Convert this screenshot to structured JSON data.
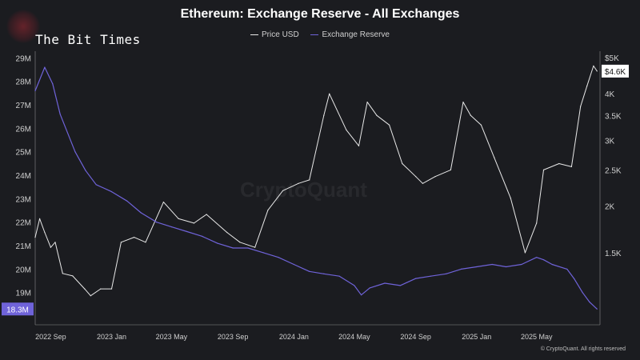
{
  "chart_data": {
    "type": "line",
    "title": "Ethereum: Exchange Reserve - All Exchanges",
    "series": [
      {
        "name": "Price USD",
        "axis": "right",
        "color": "#e8e8e8",
        "x": [
          "2022-08-01",
          "2022-08-10",
          "2022-08-20",
          "2022-09-01",
          "2022-09-10",
          "2022-09-25",
          "2022-10-15",
          "2022-11-08",
          "2022-11-20",
          "2022-12-10",
          "2023-01-01",
          "2023-01-20",
          "2023-02-15",
          "2023-03-10",
          "2023-04-15",
          "2023-05-15",
          "2023-06-15",
          "2023-07-10",
          "2023-08-20",
          "2023-09-15",
          "2023-10-15",
          "2023-11-10",
          "2023-12-10",
          "2024-01-10",
          "2024-02-01",
          "2024-03-01",
          "2024-03-12",
          "2024-04-15",
          "2024-05-10",
          "2024-05-27",
          "2024-06-15",
          "2024-07-10",
          "2024-08-05",
          "2024-09-01",
          "2024-09-15",
          "2024-10-10",
          "2024-11-10",
          "2024-12-05",
          "2024-12-20",
          "2025-01-10",
          "2025-02-05",
          "2025-03-10",
          "2025-04-08",
          "2025-05-01",
          "2025-05-15",
          "2025-06-15",
          "2025-07-10",
          "2025-07-28",
          "2025-08-10",
          "2025-08-23",
          "2025-08-30"
        ],
        "values": [
          1650,
          1850,
          1700,
          1550,
          1600,
          1320,
          1300,
          1200,
          1150,
          1200,
          1200,
          1600,
          1650,
          1600,
          2050,
          1850,
          1800,
          1900,
          1700,
          1600,
          1550,
          1950,
          2200,
          2300,
          2350,
          3500,
          4000,
          3200,
          2900,
          3800,
          3500,
          3300,
          2600,
          2400,
          2300,
          2400,
          2500,
          3800,
          3500,
          3300,
          2700,
          2100,
          1500,
          1800,
          2500,
          2600,
          2550,
          3700,
          4200,
          4750,
          4600
        ]
      },
      {
        "name": "Exchange Reserve",
        "axis": "left",
        "color": "#6f63d9",
        "x": [
          "2022-08-01",
          "2022-08-20",
          "2022-09-05",
          "2022-09-20",
          "2022-10-20",
          "2022-11-10",
          "2022-12-01",
          "2023-01-01",
          "2023-02-01",
          "2023-03-01",
          "2023-04-01",
          "2023-05-01",
          "2023-06-01",
          "2023-07-01",
          "2023-08-01",
          "2023-09-01",
          "2023-10-01",
          "2023-11-01",
          "2023-12-01",
          "2024-01-01",
          "2024-02-01",
          "2024-03-01",
          "2024-04-01",
          "2024-05-01",
          "2024-05-15",
          "2024-06-01",
          "2024-07-01",
          "2024-08-01",
          "2024-09-01",
          "2024-10-01",
          "2024-11-01",
          "2024-12-01",
          "2025-01-01",
          "2025-02-01",
          "2025-03-01",
          "2025-04-01",
          "2025-05-01",
          "2025-05-15",
          "2025-06-01",
          "2025-07-01",
          "2025-07-15",
          "2025-08-01",
          "2025-08-15",
          "2025-08-30"
        ],
        "values": [
          27.6,
          28.6,
          27.9,
          26.6,
          25.0,
          24.2,
          23.6,
          23.3,
          22.9,
          22.4,
          22.0,
          21.8,
          21.6,
          21.4,
          21.1,
          20.9,
          20.9,
          20.7,
          20.5,
          20.2,
          19.9,
          19.8,
          19.7,
          19.3,
          18.9,
          19.2,
          19.4,
          19.3,
          19.6,
          19.7,
          19.8,
          20.0,
          20.1,
          20.2,
          20.1,
          20.2,
          20.5,
          20.4,
          20.2,
          20.0,
          19.6,
          19.0,
          18.6,
          18.3
        ]
      }
    ],
    "yaxis_left": {
      "ticks": [
        "19M",
        "20M",
        "21M",
        "22M",
        "23M",
        "24M",
        "25M",
        "26M",
        "27M",
        "28M",
        "29M"
      ],
      "values": [
        19,
        20,
        21,
        22,
        23,
        24,
        25,
        26,
        27,
        28,
        29
      ],
      "range": [
        17.9,
        29.15
      ],
      "last_label": "18.3M",
      "last_value": 18.3
    },
    "yaxis_right": {
      "ticks": [
        "1.5K",
        "2K",
        "2.5K",
        "3K",
        "3.5K",
        "4K",
        "$5K"
      ],
      "values": [
        1500,
        2000,
        2500,
        3000,
        3500,
        4000,
        5000
      ],
      "scale": "log",
      "range": [
        1000,
        5100
      ],
      "last_label": "$4.6K",
      "last_value": 4600
    },
    "xaxis": {
      "ticks": [
        "2022 Sep",
        "2023 Jan",
        "2023 May",
        "2023 Sep",
        "2024 Jan",
        "2024 May",
        "2024 Sep",
        "2025 Jan",
        "2025 May"
      ],
      "dates": [
        "2022-09-01",
        "2023-01-01",
        "2023-05-01",
        "2023-09-01",
        "2024-01-01",
        "2024-05-01",
        "2024-09-01",
        "2025-01-01",
        "2025-05-01"
      ],
      "range": [
        "2022-08-01",
        "2025-09-05"
      ]
    },
    "grid": false,
    "legend_position": "top-center"
  },
  "watermark": "The Bit Times",
  "background_mark": "CryptoQuant",
  "credit": "© CryptoQuant. All rights reserved",
  "colors": {
    "background": "#1b1c20",
    "price": "#e8e8e8",
    "reserve": "#6f63d9",
    "axis": "#8a8a8a"
  }
}
